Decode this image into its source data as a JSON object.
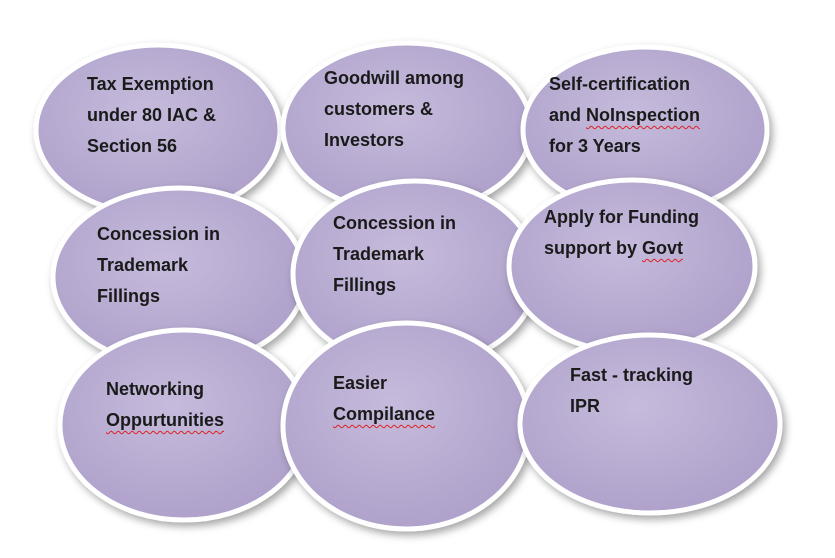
{
  "colors": {
    "fill": "#ad9fc9",
    "fill_light": "#c6bbdc",
    "edge": "#ffffff",
    "text": "#1a1a1a",
    "spellcheck": "#d22"
  },
  "bubbles": [
    {
      "lines": [
        [
          "Tax Exemption"
        ],
        [
          "under 80 IAC &"
        ],
        [
          "Section 56"
        ]
      ]
    },
    {
      "lines": [
        [
          "Goodwill among"
        ],
        [
          "customers &"
        ],
        [
          "Investors"
        ]
      ]
    },
    {
      "lines": [
        [
          "Self-certification"
        ],
        [
          "and ",
          {
            "text": "NoInspection",
            "flag": true
          }
        ],
        [
          "for 3 Years"
        ]
      ]
    },
    {
      "lines": [
        [
          "Concession in"
        ],
        [
          "Trademark"
        ],
        [
          "Fillings"
        ]
      ]
    },
    {
      "lines": [
        [
          "Concession in"
        ],
        [
          "Trademark"
        ],
        [
          "Fillings"
        ]
      ]
    },
    {
      "lines": [
        [
          "Apply for Funding"
        ],
        [
          "support by ",
          {
            "text": "Govt",
            "flag": true
          }
        ]
      ]
    },
    {
      "lines": [
        [
          "Networking"
        ],
        [
          {
            "text": "Oppurtunities",
            "flag": true
          }
        ]
      ]
    },
    {
      "lines": [
        [
          "Easier"
        ],
        [
          {
            "text": "Compilance",
            "flag": true
          }
        ]
      ]
    },
    {
      "lines": [
        [
          "Fast - tracking"
        ],
        [
          "IPR"
        ]
      ]
    }
  ]
}
